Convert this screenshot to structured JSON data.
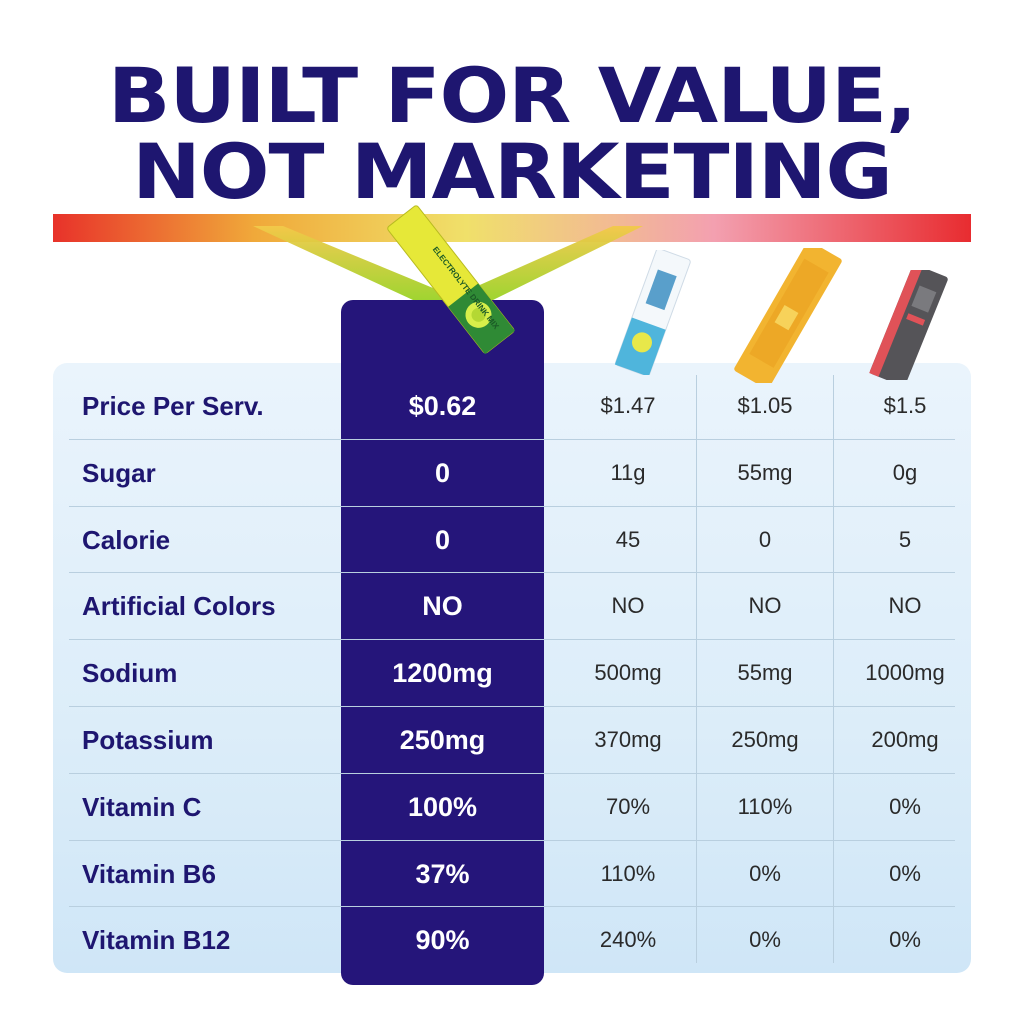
{
  "headline": {
    "line1": "BUILT FOR VALUE,",
    "line2": "NOT MARKETING"
  },
  "colors": {
    "title": "#1e1670",
    "hero_column": "#25157a",
    "bar_gradient": [
      "#e8322a",
      "#f0a93a",
      "#f0e06a",
      "#f3a0b0",
      "#e82c30"
    ],
    "table_bg": "#dcedf9"
  },
  "products": [
    {
      "icon": "yellow-lemon-stick-pack-icon",
      "label_text": "ELECTROLYTE DRINK MIX"
    },
    {
      "icon": "blue-lemon-stick-pack-icon"
    },
    {
      "icon": "orange-stick-pack-icon"
    },
    {
      "icon": "gray-red-stick-pack-icon"
    }
  ],
  "rows": [
    {
      "label": "Price Per Serv.",
      "ours": "$0.62",
      "b": "$1.47",
      "c": "$1.05",
      "d": "$1.5"
    },
    {
      "label": "Sugar",
      "ours": "0",
      "b": "11g",
      "c": "55mg",
      "d": "0g"
    },
    {
      "label": "Calorie",
      "ours": "0",
      "b": "45",
      "c": "0",
      "d": "5"
    },
    {
      "label": "Artificial Colors",
      "ours": "NO",
      "b": "NO",
      "c": "NO",
      "d": "NO"
    },
    {
      "label": "Sodium",
      "ours": "1200mg",
      "b": "500mg",
      "c": "55mg",
      "d": "1000mg"
    },
    {
      "label": "Potassium",
      "ours": "250mg",
      "b": "370mg",
      "c": "250mg",
      "d": "200mg"
    },
    {
      "label": "Vitamin C",
      "ours": "100%",
      "b": "70%",
      "c": "110%",
      "d": "0%"
    },
    {
      "label": "Vitamin B6",
      "ours": "37%",
      "b": "110%",
      "c": "0%",
      "d": "0%"
    },
    {
      "label": "Vitamin B12",
      "ours": "90%",
      "b": "240%",
      "c": "0%",
      "d": "0%"
    }
  ]
}
